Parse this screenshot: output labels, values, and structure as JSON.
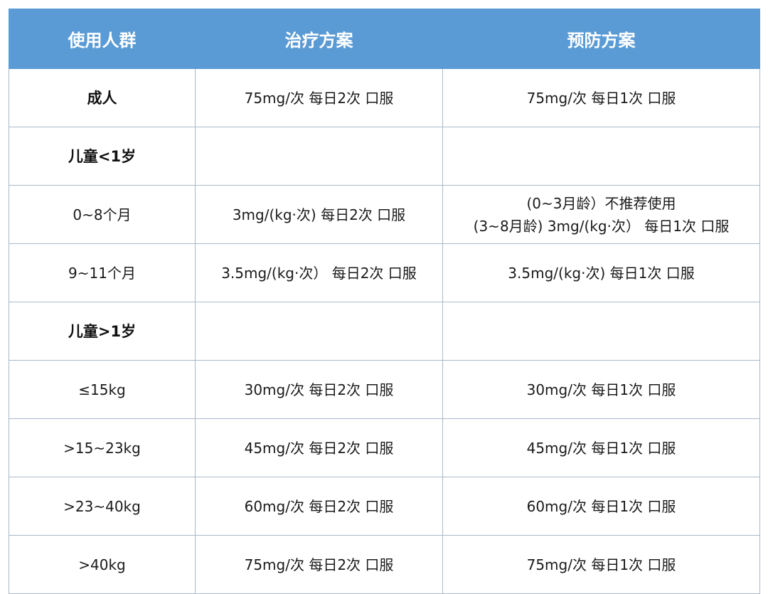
{
  "header": {
    "group": "使用人群",
    "treatment": "治疗方案",
    "prevention": "预防方案"
  },
  "colors": {
    "header_bg": "#5b9bd5",
    "header_text": "#ffffff",
    "border": "#a9b9c9"
  },
  "rows": [
    {
      "group": "成人",
      "bold": true,
      "treatment": "75mg/次 每日2次 口服",
      "prevention": "75mg/次 每日1次 口服"
    },
    {
      "group": "儿童<1岁",
      "bold": true,
      "treatment": "",
      "prevention": ""
    },
    {
      "group": "0~8个月",
      "bold": false,
      "treatment": "3mg/(kg·次) 每日2次 口服",
      "prevention": "(0~3月龄）不推荐使用",
      "prevention2": "(3~8月龄) 3mg/(kg·次） 每日1次 口服"
    },
    {
      "group": "9~11个月",
      "bold": false,
      "treatment": "3.5mg/(kg·次） 每日2次 口服",
      "prevention": "3.5mg/(kg·次) 每日1次 口服"
    },
    {
      "group": "儿童>1岁",
      "bold": true,
      "treatment": "",
      "prevention": ""
    },
    {
      "group": "≤15kg",
      "bold": false,
      "treatment": "30mg/次 每日2次 口服",
      "prevention": "30mg/次 每日1次 口服"
    },
    {
      "group": ">15~23kg",
      "bold": false,
      "treatment": "45mg/次 每日2次 口服",
      "prevention": "45mg/次 每日1次 口服"
    },
    {
      "group": ">23~40kg",
      "bold": false,
      "treatment": "60mg/次 每日2次 口服",
      "prevention": "60mg/次 每日1次 口服"
    },
    {
      "group": ">40kg",
      "bold": false,
      "treatment": "75mg/次 每日2次 口服",
      "prevention": "75mg/次 每日1次 口服"
    }
  ]
}
